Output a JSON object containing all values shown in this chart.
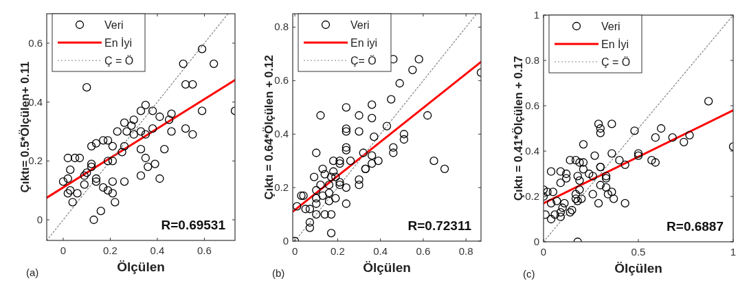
{
  "chart_data": [
    {
      "type": "scatter",
      "xlabel": "Ölçülen",
      "ylabel": "Çıktı= 0.5*Ölçülen+ 0.11",
      "xlim": [
        -0.07,
        0.73
      ],
      "ylim": [
        -0.07,
        0.7
      ],
      "xticks": [
        0,
        0.2,
        0.4,
        0.6
      ],
      "yticks": [
        0,
        0.2,
        0.4,
        0.6
      ],
      "legend": "top left",
      "grid": false,
      "annotations": [
        "R=0.69531",
        "(a)"
      ],
      "series": [
        {
          "name": "Veri",
          "marker": "circle",
          "color": "#000000",
          "x": [
            0.1,
            0.59,
            0.51,
            0.64,
            0.52,
            0.55,
            0.59,
            0.73,
            0.35,
            0.33,
            0.38,
            0.41,
            0.46,
            0.45,
            0.46,
            0.52,
            0.55,
            0.38,
            0.3,
            0.29,
            0.26,
            0.27,
            0.23,
            0.33,
            0.3,
            0.35,
            0.17,
            0.19,
            0.14,
            0.12,
            0.21,
            0.26,
            0.25,
            0.43,
            0.33,
            0.35,
            0.02,
            0.05,
            0.07,
            0.19,
            0.21,
            0.39,
            0.36,
            0.12,
            0.12,
            0.03,
            0.1,
            0.09,
            0.02,
            0.0,
            0.14,
            0.14,
            0.09,
            0.21,
            0.26,
            0.33,
            0.41,
            0.17,
            0.19,
            0.21,
            0.02,
            0.03,
            0.06,
            0.04,
            0.22,
            0.16,
            0.13
          ],
          "values": [
            0.45,
            0.58,
            0.53,
            0.53,
            0.46,
            0.46,
            0.37,
            0.37,
            0.39,
            0.37,
            0.37,
            0.35,
            0.36,
            0.34,
            0.3,
            0.31,
            0.29,
            0.31,
            0.34,
            0.32,
            0.33,
            0.3,
            0.3,
            0.3,
            0.29,
            0.29,
            0.27,
            0.27,
            0.26,
            0.25,
            0.25,
            0.25,
            0.23,
            0.24,
            0.24,
            0.21,
            0.21,
            0.21,
            0.21,
            0.2,
            0.2,
            0.19,
            0.18,
            0.19,
            0.18,
            0.17,
            0.16,
            0.15,
            0.14,
            0.13,
            0.14,
            0.13,
            0.12,
            0.13,
            0.13,
            0.15,
            0.14,
            0.11,
            0.1,
            0.09,
            0.09,
            0.1,
            0.09,
            0.06,
            0.06,
            0.03,
            0.0
          ]
        },
        {
          "name": "En İyi",
          "type": "line",
          "line_style": "solid",
          "color": "#ff0000",
          "x": [
            -0.07,
            0.73
          ],
          "values": [
            0.075,
            0.475
          ]
        },
        {
          "name": "Ç = Ö",
          "type": "line",
          "line_style": "dotted",
          "color": "#808080",
          "x": [
            -0.07,
            0.7
          ],
          "values": [
            -0.07,
            0.7
          ]
        }
      ]
    },
    {
      "type": "scatter",
      "xlabel": "Ölçülen",
      "ylabel": "Çıktı = 0.64*Ölçülen + 0.12",
      "xlim": [
        -0.01,
        0.87
      ],
      "ylim": [
        0,
        0.85
      ],
      "xticks": [
        0,
        0.2,
        0.4,
        0.6,
        0.8
      ],
      "yticks": [
        0,
        0.2,
        0.4,
        0.6,
        0.8
      ],
      "legend": "top left",
      "grid": false,
      "annotations": [
        "R=0.72311",
        "(b)"
      ],
      "series": [
        {
          "name": "Veri",
          "marker": "circle",
          "color": "#000000",
          "x": [
            0,
            0.46,
            0.58,
            0.55,
            0.87,
            0.49,
            0.45,
            0.36,
            0.24,
            0.12,
            0.3,
            0.36,
            0.62,
            0.43,
            0.24,
            0.24,
            0.3,
            0.37,
            0.51,
            0.51,
            0.24,
            0.24,
            0.46,
            0.46,
            0.1,
            0.32,
            0.36,
            0.65,
            0.7,
            0.39,
            0.36,
            0.33,
            0.33,
            0.26,
            0.21,
            0.18,
            0.21,
            0.13,
            0.14,
            0.18,
            0.09,
            0.17,
            0.19,
            0.21,
            0.3,
            0.3,
            0.12,
            0.16,
            0.21,
            0.24,
            0.1,
            0.13,
            0.16,
            0.19,
            0.1,
            0.16,
            0.03,
            0.04,
            0.1,
            0.24,
            0.01,
            0.05,
            0.07,
            0.14,
            0.1,
            0.17,
            0.07,
            0.07,
            0.17
          ],
          "values": [
            0,
            0.68,
            0.68,
            0.64,
            0.63,
            0.59,
            0.53,
            0.51,
            0.5,
            0.47,
            0.47,
            0.46,
            0.47,
            0.43,
            0.42,
            0.41,
            0.41,
            0.39,
            0.4,
            0.38,
            0.35,
            0.34,
            0.35,
            0.33,
            0.33,
            0.33,
            0.32,
            0.3,
            0.27,
            0.3,
            0.29,
            0.27,
            0.27,
            0.3,
            0.29,
            0.3,
            0.3,
            0.27,
            0.25,
            0.26,
            0.24,
            0.24,
            0.24,
            0.22,
            0.23,
            0.21,
            0.21,
            0.21,
            0.21,
            0.2,
            0.19,
            0.17,
            0.18,
            0.16,
            0.16,
            0.15,
            0.17,
            0.17,
            0.14,
            0.14,
            0.13,
            0.12,
            0.12,
            0.1,
            0.1,
            0.1,
            0.07,
            0.05,
            0.03
          ]
        },
        {
          "name": "En iyi",
          "type": "line",
          "line_style": "solid",
          "color": "#ff0000",
          "x": [
            -0.01,
            0.87
          ],
          "values": [
            0.11,
            0.67
          ]
        },
        {
          "name": "Ç= Ö",
          "type": "line",
          "line_style": "dotted",
          "color": "#808080",
          "x": [
            0,
            0.85
          ],
          "values": [
            0,
            0.85
          ]
        }
      ]
    },
    {
      "type": "scatter",
      "xlabel": "Ölçülen",
      "ylabel": "Çıktı = 0.41*Ölçülen + 0.17",
      "xlim": [
        0,
        1
      ],
      "ylim": [
        0,
        1
      ],
      "xticks": [
        0,
        0.5,
        1
      ],
      "yticks": [
        0,
        0.2,
        0.4,
        0.6,
        0.8,
        1
      ],
      "legend": "top left",
      "grid": false,
      "annotations": [
        "R=0.6887",
        "(c)"
      ],
      "series": [
        {
          "name": "Veri",
          "marker": "circle",
          "color": "#000000",
          "x": [
            0.87,
            0.36,
            0.29,
            0.3,
            0.3,
            0.48,
            0.62,
            0.59,
            0.68,
            0.77,
            0.74,
            0.21,
            0.36,
            0.5,
            0.5,
            1.0,
            0.57,
            0.59,
            0.27,
            0.4,
            0.43,
            0.14,
            0.17,
            0.19,
            0.21,
            0.3,
            0.3,
            0.04,
            0.09,
            0.12,
            0.21,
            0.24,
            0.26,
            0.18,
            0.33,
            0.33,
            0.09,
            0.19,
            0.12,
            0.3,
            0.33,
            0.36,
            0.34,
            0.37,
            0.26,
            0.19,
            0.17,
            0.17,
            0.2,
            0.0,
            0.02,
            0.05,
            0.0,
            0.04,
            0.07,
            0.11,
            0.15,
            0.1,
            0.14,
            0.09,
            0.06,
            0.09,
            0.01,
            0.04,
            0.18,
            0.29,
            0.43,
            0.18
          ],
          "values": [
            0.62,
            0.52,
            0.52,
            0.5,
            0.48,
            0.49,
            0.5,
            0.46,
            0.46,
            0.47,
            0.44,
            0.43,
            0.39,
            0.39,
            0.38,
            0.42,
            0.36,
            0.35,
            0.38,
            0.36,
            0.34,
            0.36,
            0.36,
            0.35,
            0.35,
            0.33,
            0.33,
            0.31,
            0.31,
            0.3,
            0.32,
            0.3,
            0.29,
            0.29,
            0.29,
            0.28,
            0.26,
            0.27,
            0.28,
            0.25,
            0.24,
            0.22,
            0.21,
            0.19,
            0.21,
            0.23,
            0.21,
            0.19,
            0.19,
            0.23,
            0.22,
            0.22,
            0.2,
            0.17,
            0.18,
            0.17,
            0.14,
            0.15,
            0.13,
            0.13,
            0.12,
            0.11,
            0.12,
            0.1,
            0.18,
            0.17,
            0.17,
            0.0
          ]
        },
        {
          "name": "En İyi",
          "type": "line",
          "line_style": "solid",
          "color": "#ff0000",
          "x": [
            0,
            1
          ],
          "values": [
            0.17,
            0.58
          ]
        },
        {
          "name": "Ç = Ö",
          "type": "line",
          "line_style": "dotted",
          "color": "#808080",
          "x": [
            0,
            1
          ],
          "values": [
            0,
            1
          ]
        }
      ]
    }
  ]
}
